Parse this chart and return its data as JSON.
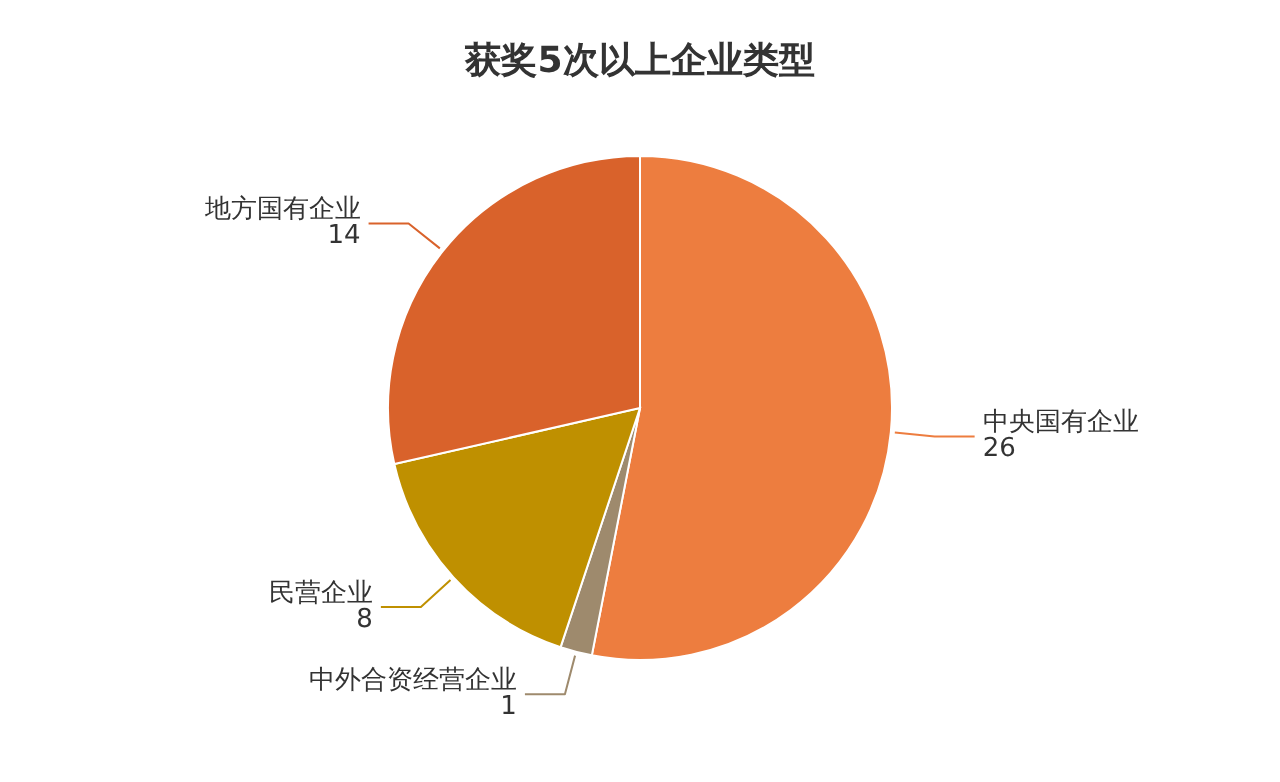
{
  "chart_data": {
    "type": "pie",
    "title": "获奖5次以上企业类型",
    "categories": [
      "中央国有企业",
      "中外合资经营企业",
      "民营企业",
      "地方国有企业"
    ],
    "values": [
      26,
      1,
      8,
      14
    ],
    "colors": [
      "#ed7d3f",
      "#9e8a6d",
      "#bf9000",
      "#d9622b"
    ],
    "data_labels": true
  }
}
